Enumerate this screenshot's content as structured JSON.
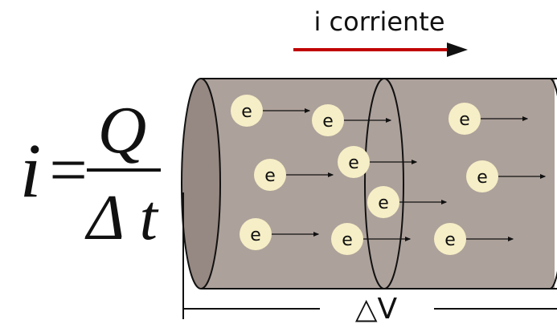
{
  "header": {
    "label": "i corriente"
  },
  "formula": {
    "lhs": "i",
    "equals": "=",
    "numerator": "Q",
    "denominator": "Δ t"
  },
  "length_label": "△V",
  "electrons": [
    {
      "label": "e"
    },
    {
      "label": "e"
    },
    {
      "label": "e"
    },
    {
      "label": "e"
    },
    {
      "label": "e"
    },
    {
      "label": "e"
    },
    {
      "label": "e"
    },
    {
      "label": "e"
    },
    {
      "label": "e"
    },
    {
      "label": "e"
    }
  ]
}
